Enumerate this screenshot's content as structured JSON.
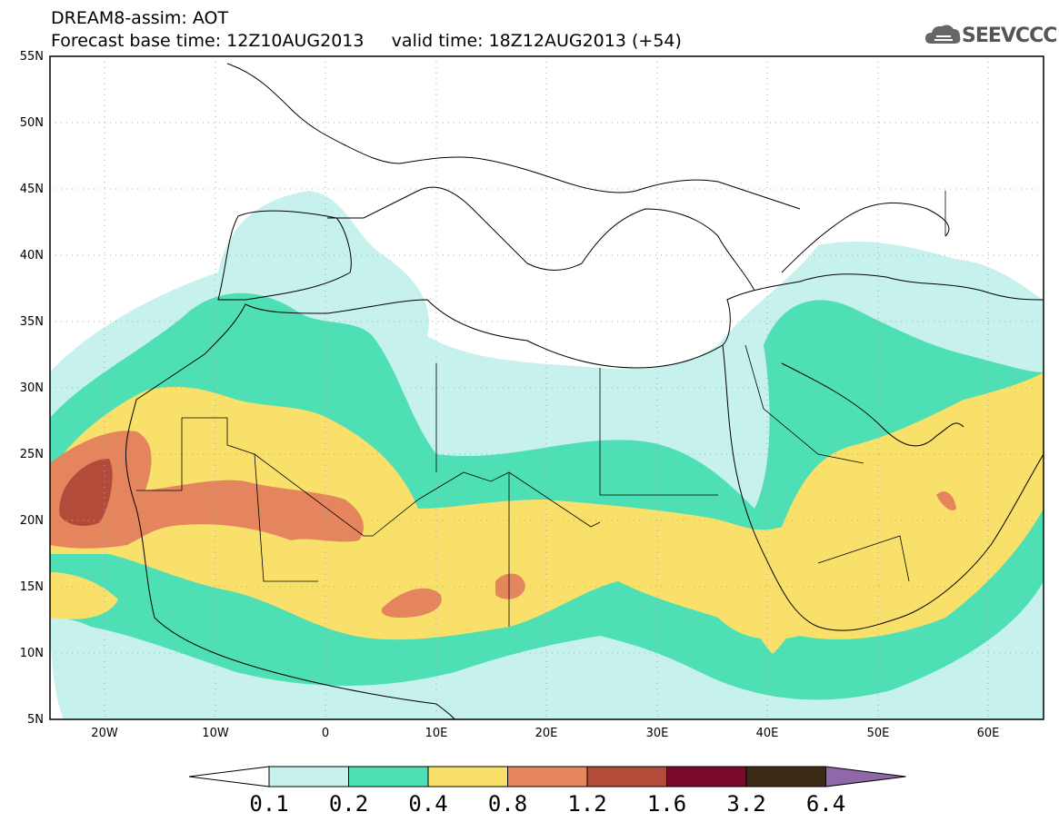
{
  "title": {
    "line1": "DREAM8-assim: AOT",
    "line2": "Forecast base time: 12Z10AUG2013     valid time: 18Z12AUG2013 (+54)"
  },
  "logo": {
    "text": "SEEVCCC",
    "icon": "cloud-icon"
  },
  "map": {
    "projection": "lat-lon",
    "lon_range": [
      -25,
      65
    ],
    "lat_range": [
      5,
      55
    ],
    "lat_labels": [
      "55N",
      "50N",
      "45N",
      "40N",
      "35N",
      "30N",
      "25N",
      "20N",
      "15N",
      "10N",
      "5N"
    ],
    "lon_labels": [
      "20W",
      "10W",
      "0",
      "10E",
      "20E",
      "30E",
      "40E",
      "50E",
      "60E"
    ]
  },
  "colorbar": {
    "levels": [
      "0.1",
      "0.2",
      "0.4",
      "0.8",
      "1.2",
      "1.6",
      "3.2",
      "6.4"
    ],
    "colors": [
      "#ffffff",
      "#c6f1ec",
      "#4ee0b4",
      "#f8e06a",
      "#e5855e",
      "#b24b3a",
      "#7a0a2a",
      "#3d2a16",
      "#8e68a8"
    ]
  }
}
